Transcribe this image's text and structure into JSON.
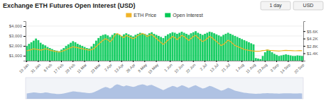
{
  "chart_data": {
    "type": "bar",
    "title": "Exchange ETH Futures Open Interest (USD)",
    "categories": [
      "19 Jan",
      null,
      null,
      null,
      null,
      "31 Jan",
      null,
      null,
      null,
      null,
      "6 Feb",
      null,
      null,
      null,
      null,
      "17 Feb",
      null,
      null,
      null,
      null,
      "28 Feb",
      null,
      null,
      null,
      null,
      "11 Mar",
      null,
      null,
      null,
      null,
      null,
      "23 Mar",
      null,
      null,
      null,
      null,
      "2 Apr",
      null,
      null,
      null,
      null,
      "13 Apr",
      null,
      null,
      null,
      null,
      "26 Apr",
      null,
      null,
      null,
      null,
      "8 May",
      null,
      null,
      null,
      null,
      "19 May",
      null,
      null,
      null,
      null,
      null,
      "1 Jun",
      null,
      null,
      null,
      null,
      "10 Jun",
      null,
      null,
      null,
      null,
      "22 Jun",
      null,
      null,
      null,
      null,
      "2 Jul",
      null,
      null,
      null,
      null,
      "13 Jul",
      null,
      null,
      null,
      null,
      "21 Jul",
      null,
      null,
      null,
      null,
      null,
      "1 Aug",
      null,
      null,
      null,
      null,
      "11 Aug",
      null,
      null,
      null,
      null,
      "23 Aug",
      null,
      null,
      null,
      null,
      "3 Sep",
      null,
      null,
      null,
      null,
      "14 Sep",
      null,
      null,
      null,
      null,
      null,
      "20 Sep"
    ],
    "series": [
      {
        "name": "ETH Price",
        "type": "line",
        "color": "#f0b429",
        "values": [
          1500,
          1560,
          1620,
          1710,
          1660,
          1610,
          1560,
          1610,
          1710,
          1660,
          1560,
          1510,
          1460,
          1410,
          1390,
          1430,
          1510,
          1610,
          1710,
          1810,
          1910,
          1860,
          1810,
          1760,
          1710,
          1660,
          1610,
          1560,
          1610,
          1720,
          1930,
          2150,
          2370,
          2570,
          2720,
          2620,
          2420,
          2630,
          3050,
          3250,
          3150,
          2950,
          2830,
          3050,
          2950,
          2830,
          2730,
          2840,
          3050,
          3150,
          3250,
          3150,
          2950,
          3060,
          3150,
          2950,
          2750,
          2550,
          2350,
          2150,
          2350,
          2570,
          2750,
          2950,
          2840,
          2630,
          2840,
          3060,
          2950,
          2750,
          2550,
          2750,
          2950,
          3060,
          2840,
          2630,
          2440,
          2550,
          2750,
          2950,
          2840,
          2630,
          2440,
          2240,
          2040,
          2150,
          2350,
          2570,
          2450,
          2240,
          2040,
          1940,
          1840,
          1740,
          1640,
          1590,
          1540,
          1510,
          1480,
          1450,
          1460,
          1470,
          1530,
          1550,
          1580,
          1550,
          1530,
          1510,
          1490,
          1470,
          1500,
          1520,
          1540,
          1530,
          1520,
          1510,
          1500,
          1510,
          1520,
          1510
        ]
      },
      {
        "name": "Open Interest",
        "type": "bar",
        "color": "#00c853",
        "axis": "y2",
        "values": [
          2.8,
          3.2,
          3.5,
          3.8,
          4.2,
          3.9,
          3.4,
          3.1,
          2.9,
          2.6,
          2.4,
          2.2,
          2.0,
          1.9,
          1.8,
          2.1,
          2.4,
          2.8,
          3.1,
          3.4,
          3.7,
          3.5,
          3.2,
          3.0,
          2.8,
          2.6,
          2.4,
          2.3,
          2.7,
          3.2,
          3.8,
          4.3,
          4.7,
          4.9,
          5.0,
          4.8,
          4.5,
          4.9,
          5.2,
          5.1,
          4.9,
          4.7,
          5.0,
          5.2,
          5.0,
          4.8,
          4.6,
          4.9,
          5.1,
          5.3,
          5.2,
          5.1,
          4.9,
          5.2,
          5.4,
          5.1,
          4.9,
          4.7,
          4.5,
          4.3,
          4.7,
          5.0,
          5.2,
          5.4,
          5.3,
          5.1,
          5.3,
          5.5,
          5.3,
          5.1,
          4.9,
          5.2,
          5.4,
          5.6,
          5.3,
          5.1,
          4.9,
          5.1,
          5.3,
          5.5,
          5.4,
          5.2,
          5.0,
          4.8,
          4.6,
          4.9,
          5.1,
          5.3,
          5.1,
          4.9,
          4.7,
          4.5,
          4.3,
          4.1,
          3.9,
          3.7,
          3.5,
          3.3,
          3.1,
          0.5,
          0.4,
          0.3,
          0.9,
          1.6,
          2.1,
          1.9,
          1.6,
          1.3,
          1.1,
          0.9,
          1.0,
          1.1,
          1.2,
          1.1,
          1.0,
          0.9,
          0.9,
          1.0,
          0.95,
          0.9
        ]
      }
    ],
    "ylim": [
      500,
      4500
    ],
    "yticks": [
      {
        "value": 1000,
        "label": "$1,000"
      },
      {
        "value": 2000,
        "label": "$2,000"
      },
      {
        "value": 3000,
        "label": "$3,000"
      },
      {
        "value": 4000,
        "label": "$4,000"
      }
    ],
    "y2lim": [
      0.0,
      7.5
    ],
    "y2ticks": [
      {
        "value": 1.4,
        "label": "$1.4K"
      },
      {
        "value": 2.8,
        "label": "$2.8K"
      },
      {
        "value": 4.2,
        "label": "$4.2K"
      },
      {
        "value": 5.6,
        "label": "$5.6K"
      }
    ],
    "grid": true,
    "legend": "top",
    "annotations": [
      "1 day",
      "USD"
    ]
  }
}
